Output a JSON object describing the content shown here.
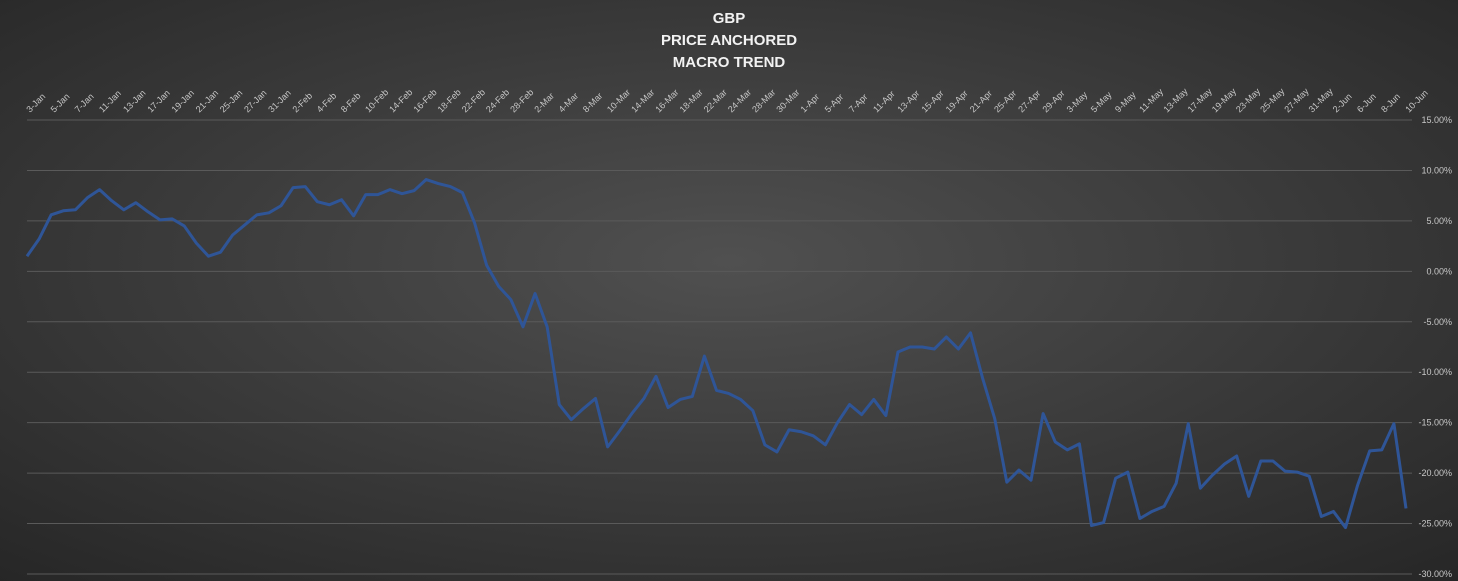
{
  "chart_data": {
    "type": "line",
    "title_lines": [
      "GBP",
      "PRICE ANCHORED",
      "MACRO TREND"
    ],
    "categories": [
      "3-Jan",
      null,
      "5-Jan",
      null,
      "7-Jan",
      null,
      "11-Jan",
      null,
      "13-Jan",
      null,
      "17-Jan",
      null,
      "19-Jan",
      null,
      "21-Jan",
      null,
      "25-Jan",
      null,
      "27-Jan",
      null,
      "31-Jan",
      null,
      "2-Feb",
      null,
      "4-Feb",
      null,
      "8-Feb",
      null,
      "10-Feb",
      null,
      "14-Feb",
      null,
      "16-Feb",
      null,
      "18-Feb",
      null,
      "22-Feb",
      null,
      "24-Feb",
      null,
      "28-Feb",
      null,
      "2-Mar",
      null,
      "4-Mar",
      null,
      "8-Mar",
      null,
      "10-Mar",
      null,
      "14-Mar",
      null,
      "16-Mar",
      null,
      "18-Mar",
      null,
      "22-Mar",
      null,
      "24-Mar",
      null,
      "28-Mar",
      null,
      "30-Mar",
      null,
      "1-Apr",
      null,
      "5-Apr",
      null,
      "7-Apr",
      null,
      "11-Apr",
      null,
      "13-Apr",
      null,
      "15-Apr",
      null,
      "19-Apr",
      null,
      "21-Apr",
      null,
      "25-Apr",
      null,
      "27-Apr",
      null,
      "29-Apr",
      null,
      "3-May",
      null,
      "5-May",
      null,
      "9-May",
      null,
      "11-May",
      null,
      "13-May",
      null,
      "17-May",
      null,
      "19-May",
      null,
      "23-May",
      null,
      "25-May",
      null,
      "27-May",
      null,
      "31-May",
      null,
      "2-Jun",
      null,
      "6-Jun",
      null,
      "8-Jun",
      null,
      "10-Jun"
    ],
    "values": [
      1.5,
      3.2,
      5.6,
      6.0,
      6.1,
      7.3,
      8.1,
      7.0,
      6.1,
      6.8,
      5.9,
      5.1,
      5.2,
      4.5,
      2.8,
      1.5,
      1.9,
      3.6,
      4.6,
      5.6,
      5.8,
      6.5,
      8.3,
      8.4,
      6.9,
      6.6,
      7.1,
      5.5,
      7.6,
      7.6,
      8.1,
      7.7,
      8.0,
      9.1,
      8.7,
      8.4,
      7.8,
      4.8,
      0.6,
      -1.5,
      -2.8,
      -5.5,
      -2.2,
      -5.5,
      -13.2,
      -14.7,
      -13.6,
      -12.6,
      -17.4,
      -15.8,
      -14.1,
      -12.6,
      -10.4,
      -13.5,
      -12.7,
      -12.4,
      -8.4,
      -11.8,
      -12.1,
      -12.7,
      -13.8,
      -17.2,
      -17.9,
      -15.7,
      -15.9,
      -16.3,
      -17.2,
      -15.0,
      -13.2,
      -14.2,
      -12.7,
      -14.3,
      -8.0,
      -7.5,
      -7.5,
      -7.7,
      -6.5,
      -7.7,
      -6.1,
      -10.6,
      -14.6,
      -20.9,
      -19.7,
      -20.7,
      -14.1,
      -16.9,
      -17.7,
      -17.1,
      -25.2,
      -24.9,
      -20.5,
      -19.9,
      -24.5,
      -23.8,
      -23.3,
      -21.0,
      -15.1,
      -21.5,
      -20.2,
      -19.1,
      -18.3,
      -22.3,
      -18.8,
      -18.8,
      -19.8,
      -19.9,
      -20.3,
      -24.3,
      -23.8,
      -25.4,
      -21.2,
      -17.8,
      -17.7,
      -15.1,
      -23.5
    ],
    "color": "#2f5597",
    "ylim": [
      -30,
      15
    ],
    "yticks": [
      {
        "value": 15,
        "label": "15.00%"
      },
      {
        "value": 10,
        "label": "10.00%"
      },
      {
        "value": 5,
        "label": "5.00%"
      },
      {
        "value": 0,
        "label": "0.00%"
      },
      {
        "value": -5,
        "label": "-5.00%"
      },
      {
        "value": -10,
        "label": "-10.00%"
      },
      {
        "value": -15,
        "label": "-15.00%"
      },
      {
        "value": -20,
        "label": "-20.00%"
      },
      {
        "value": -25,
        "label": "-25.00%"
      },
      {
        "value": -30,
        "label": "-30.00%"
      }
    ],
    "grid": true
  }
}
